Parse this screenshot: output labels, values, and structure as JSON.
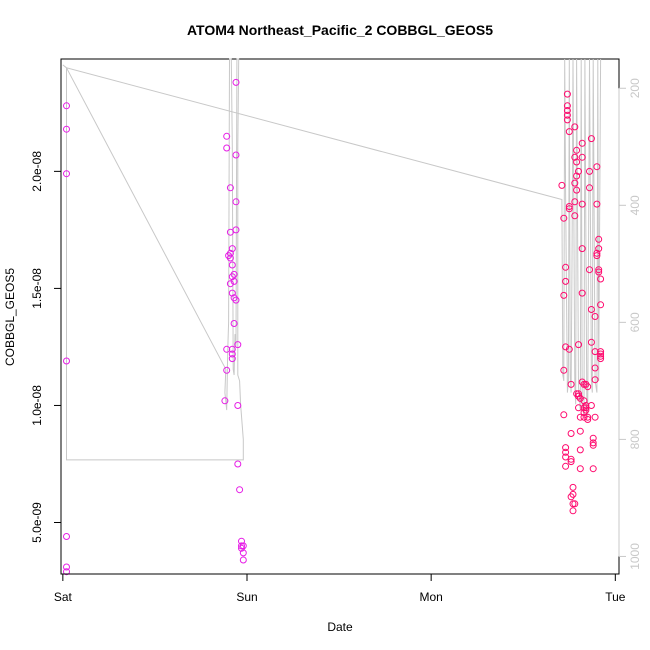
{
  "chart_data": {
    "type": "scatter",
    "title": "ATOM4 Northeast_Pacific_2 COBBGL_GEOS5",
    "xlabel": "Date",
    "ylabel": "COBBGL_GEOS5",
    "xlim_days": [
      0,
      3.0
    ],
    "ylim": [
      2.8e-09,
      2.48e-08
    ],
    "x_ticks": [
      {
        "day": 0,
        "label": "Sat"
      },
      {
        "day": 1,
        "label": "Sun"
      },
      {
        "day": 2,
        "label": "Mon"
      },
      {
        "day": 3,
        "label": "Tue"
      }
    ],
    "y_ticks": [
      {
        "value": 5e-09,
        "label": "5.0e-09"
      },
      {
        "value": 1e-08,
        "label": "1.0e-08"
      },
      {
        "value": 1.5e-08,
        "label": "1.5e-08"
      },
      {
        "value": 2e-08,
        "label": "2.0e-08"
      }
    ],
    "y2_label_color": "#c8c8c8",
    "y2_lim": [
      1030,
      150
    ],
    "y2_ticks": [
      {
        "value": 200,
        "label": "200"
      },
      {
        "value": 400,
        "label": "400"
      },
      {
        "value": 600,
        "label": "600"
      },
      {
        "value": 800,
        "label": "800"
      },
      {
        "value": 1000,
        "label": "1000"
      }
    ],
    "point_colors": {
      "early": "#e61ee6",
      "late": "#ff0a6e"
    },
    "line_color": "#c8c8c8",
    "series": [
      {
        "values": [
          [
            0.02,
            2.28e-08
          ],
          [
            0.02,
            2.18e-08
          ],
          [
            0.02,
            1.99e-08
          ],
          [
            0.02,
            1.19e-08
          ],
          [
            0.02,
            4.4e-09
          ],
          [
            0.02,
            3.1e-09
          ],
          [
            0.02,
            2.9e-09
          ],
          [
            0.89,
            2.15e-08
          ],
          [
            0.89,
            2.1e-08
          ],
          [
            0.9,
            1.64e-08
          ],
          [
            0.91,
            1.65e-08
          ],
          [
            0.89,
            1.24e-08
          ],
          [
            0.89,
            1.15e-08
          ],
          [
            0.88,
            1.02e-08
          ],
          [
            0.91,
            1.93e-08
          ],
          [
            0.91,
            1.74e-08
          ],
          [
            0.92,
            1.67e-08
          ],
          [
            0.91,
            1.63e-08
          ],
          [
            0.92,
            1.6e-08
          ],
          [
            0.93,
            1.56e-08
          ],
          [
            0.92,
            1.55e-08
          ],
          [
            0.91,
            1.52e-08
          ],
          [
            0.93,
            1.53e-08
          ],
          [
            0.92,
            1.48e-08
          ],
          [
            0.93,
            1.46e-08
          ],
          [
            0.94,
            1.45e-08
          ],
          [
            0.93,
            1.35e-08
          ],
          [
            0.92,
            1.24e-08
          ],
          [
            0.92,
            1.22e-08
          ],
          [
            0.92,
            1.2e-08
          ],
          [
            0.94,
            2.38e-08
          ],
          [
            0.94,
            2.07e-08
          ],
          [
            0.94,
            1.87e-08
          ],
          [
            0.94,
            1.75e-08
          ],
          [
            0.95,
            1.26e-08
          ],
          [
            0.95,
            1e-08
          ],
          [
            0.95,
            7.5e-09
          ],
          [
            0.96,
            6.4e-09
          ],
          [
            0.97,
            4.2e-09
          ],
          [
            0.97,
            4e-09
          ],
          [
            0.98,
            4e-09
          ],
          [
            0.97,
            3.9e-09
          ],
          [
            0.98,
            3.7e-09
          ],
          [
            0.98,
            3.4e-09
          ]
        ]
      },
      {
        "values": [
          [
            2.71,
            1.94e-08
          ],
          [
            2.72,
            1.8e-08
          ],
          [
            2.72,
            1.47e-08
          ],
          [
            2.72,
            1.15e-08
          ],
          [
            2.72,
            9.6e-09
          ],
          [
            2.73,
            8.2e-09
          ],
          [
            2.73,
            8e-09
          ],
          [
            2.73,
            7.8e-09
          ],
          [
            2.73,
            7.4e-09
          ],
          [
            2.73,
            1.59e-08
          ],
          [
            2.73,
            1.53e-08
          ],
          [
            2.73,
            1.25e-08
          ],
          [
            2.74,
            2.33e-08
          ],
          [
            2.74,
            2.28e-08
          ],
          [
            2.74,
            2.26e-08
          ],
          [
            2.74,
            2.24e-08
          ],
          [
            2.74,
            2.22e-08
          ],
          [
            2.75,
            2.17e-08
          ],
          [
            2.75,
            1.84e-08
          ],
          [
            2.75,
            1.85e-08
          ],
          [
            2.75,
            1.24e-08
          ],
          [
            2.76,
            1.09e-08
          ],
          [
            2.76,
            8.8e-09
          ],
          [
            2.76,
            7.7e-09
          ],
          [
            2.76,
            7.6e-09
          ],
          [
            2.77,
            6.5e-09
          ],
          [
            2.77,
            6.2e-09
          ],
          [
            2.76,
            6.1e-09
          ],
          [
            2.77,
            5.8e-09
          ],
          [
            2.77,
            5.5e-09
          ],
          [
            2.78,
            5.8e-09
          ],
          [
            2.78,
            1.81e-08
          ],
          [
            2.78,
            1.87e-08
          ],
          [
            2.78,
            1.95e-08
          ],
          [
            2.78,
            2.06e-08
          ],
          [
            2.79,
            2.09e-08
          ],
          [
            2.79,
            2.04e-08
          ],
          [
            2.8,
            2e-08
          ],
          [
            2.78,
            2.19e-08
          ],
          [
            2.79,
            1.98e-08
          ],
          [
            2.79,
            1.92e-08
          ],
          [
            2.8,
            1.26e-08
          ],
          [
            2.79,
            1.05e-08
          ],
          [
            2.8,
            1.04e-08
          ],
          [
            2.8,
            1.05e-08
          ],
          [
            2.8,
            1.04e-08
          ],
          [
            2.81,
            1.03e-08
          ],
          [
            2.8,
            9.9e-09
          ],
          [
            2.81,
            9.5e-09
          ],
          [
            2.81,
            8.9e-09
          ],
          [
            2.81,
            8.1e-09
          ],
          [
            2.81,
            7.3e-09
          ],
          [
            2.82,
            2.12e-08
          ],
          [
            2.82,
            2.06e-08
          ],
          [
            2.82,
            1.86e-08
          ],
          [
            2.82,
            1.67e-08
          ],
          [
            2.82,
            1.48e-08
          ],
          [
            2.82,
            1.1e-08
          ],
          [
            2.83,
            1.09e-08
          ],
          [
            2.83,
            1.02e-08
          ],
          [
            2.83,
            9.9e-09
          ],
          [
            2.83,
            9.7e-09
          ],
          [
            2.83,
            9.5e-09
          ],
          [
            2.84,
            1e-08
          ],
          [
            2.84,
            9.9e-09
          ],
          [
            2.84,
            9.8e-09
          ],
          [
            2.85,
            9.5e-09
          ],
          [
            2.85,
            9.4e-09
          ],
          [
            2.84,
            1.09e-08
          ],
          [
            2.85,
            1.08e-08
          ],
          [
            2.86,
            2e-08
          ],
          [
            2.86,
            1.58e-08
          ],
          [
            2.87,
            1.41e-08
          ],
          [
            2.87,
            1.27e-08
          ],
          [
            2.86,
            1.93e-08
          ],
          [
            2.87,
            2.14e-08
          ],
          [
            2.87,
            1e-08
          ],
          [
            2.88,
            8.6e-09
          ],
          [
            2.88,
            8.4e-09
          ],
          [
            2.88,
            8.3e-09
          ],
          [
            2.89,
            9.5e-09
          ],
          [
            2.88,
            7.3e-09
          ],
          [
            2.89,
            1.38e-08
          ],
          [
            2.89,
            1.23e-08
          ],
          [
            2.89,
            1.16e-08
          ],
          [
            2.89,
            1.11e-08
          ],
          [
            2.9,
            1.86e-08
          ],
          [
            2.9,
            2.02e-08
          ],
          [
            2.9,
            1.65e-08
          ],
          [
            2.9,
            1.64e-08
          ],
          [
            2.91,
            1.67e-08
          ],
          [
            2.91,
            1.58e-08
          ],
          [
            2.91,
            1.71e-08
          ],
          [
            2.91,
            1.57e-08
          ],
          [
            2.92,
            1.54e-08
          ],
          [
            2.92,
            1.43e-08
          ],
          [
            2.92,
            1.23e-08
          ],
          [
            2.92,
            1.22e-08
          ],
          [
            2.92,
            1.21e-08
          ],
          [
            2.92,
            1.2e-08
          ]
        ]
      }
    ],
    "altitude_line": [
      [
        0.0,
        160
      ],
      [
        0.02,
        165
      ],
      [
        0.02,
        835
      ],
      [
        0.98,
        835
      ],
      [
        0.98,
        825
      ],
      [
        0.98,
        800
      ],
      [
        0.97,
        760
      ],
      [
        0.965,
        740
      ],
      [
        0.96,
        700
      ],
      [
        0.95,
        690
      ],
      [
        0.95,
        300
      ],
      [
        0.955,
        150
      ],
      [
        0.945,
        150
      ],
      [
        0.94,
        640
      ],
      [
        0.935,
        620
      ],
      [
        0.93,
        690
      ],
      [
        0.925,
        680
      ],
      [
        0.92,
        300
      ],
      [
        0.915,
        150
      ],
      [
        0.905,
        150
      ],
      [
        0.9,
        600
      ],
      [
        0.895,
        650
      ],
      [
        0.89,
        750
      ],
      [
        0.88,
        720
      ],
      [
        0.885,
        680
      ],
      [
        0.02,
        165
      ],
      [
        2.71,
        390
      ],
      [
        2.715,
        690
      ],
      [
        2.72,
        700
      ],
      [
        2.725,
        150
      ],
      [
        2.73,
        380
      ],
      [
        2.74,
        720
      ],
      [
        2.745,
        700
      ],
      [
        2.75,
        150
      ],
      [
        2.755,
        690
      ],
      [
        2.76,
        720
      ],
      [
        2.765,
        500
      ],
      [
        2.77,
        150
      ],
      [
        2.78,
        710
      ],
      [
        2.785,
        740
      ],
      [
        2.79,
        150
      ],
      [
        2.8,
        710
      ],
      [
        2.81,
        750
      ],
      [
        2.815,
        150
      ],
      [
        2.82,
        740
      ],
      [
        2.83,
        760
      ],
      [
        2.835,
        150
      ],
      [
        2.845,
        740
      ],
      [
        2.85,
        760
      ],
      [
        2.86,
        150
      ],
      [
        2.87,
        700
      ],
      [
        2.875,
        720
      ],
      [
        2.88,
        150
      ],
      [
        2.89,
        700
      ],
      [
        2.9,
        720
      ],
      [
        2.905,
        150
      ],
      [
        2.91,
        700
      ],
      [
        2.92,
        150
      ]
    ]
  }
}
